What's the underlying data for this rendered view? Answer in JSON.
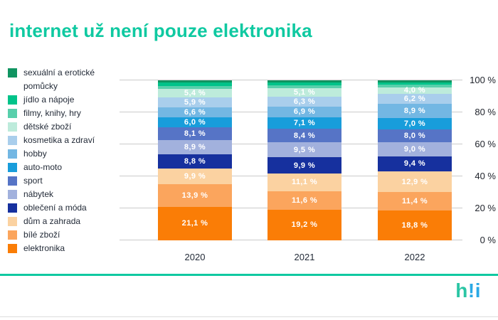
{
  "title": "internet už není pouze elektronika",
  "colors": {
    "accent_teal": "#0FC9A1",
    "logo_green": "#2BC5A4",
    "logo_blue": "#2AA9E5",
    "grid": "#CBCBCB",
    "text_dark": "#232B38",
    "bar_label": "#FFFFFF"
  },
  "logo": {
    "h": "h",
    "bang": "!i"
  },
  "chart_data": {
    "type": "bar",
    "stacked": true,
    "unit": "%",
    "grid": true,
    "legend_position": "left",
    "ylim": [
      0,
      100
    ],
    "y_ticks": [
      "0 %",
      "20 %",
      "40 %",
      "60 %",
      "80 %",
      "100 %"
    ],
    "categories": [
      "2020",
      "2021",
      "2022"
    ],
    "series_note": "series listed bottom-of-stack to top-of-stack; values are percent; empty label = value not printed on chart (estimated from pixel height)",
    "series": [
      {
        "name": "elektronika",
        "color": "#FA7D06",
        "values": [
          21.1,
          19.2,
          18.8
        ],
        "labels": [
          "21,1 %",
          "19,2 %",
          "18,8 %"
        ]
      },
      {
        "name": "bílé zboží",
        "color": "#FBA55D",
        "values": [
          13.9,
          11.6,
          11.4
        ],
        "labels": [
          "13,9 %",
          "11,6 %",
          "11,4 %"
        ]
      },
      {
        "name": "dům a zahrada",
        "color": "#FBD2A1",
        "values": [
          9.9,
          11.1,
          12.9
        ],
        "labels": [
          "9,9 %",
          "11,1 %",
          "12,9 %"
        ]
      },
      {
        "name": "oblečení a móda",
        "color": "#16309E",
        "values": [
          8.8,
          9.9,
          9.4
        ],
        "labels": [
          "8,8 %",
          "9,9 %",
          "9,4 %"
        ]
      },
      {
        "name": "nábytek",
        "color": "#A2B1DD",
        "values": [
          8.9,
          9.5,
          9.0
        ],
        "labels": [
          "8,9 %",
          "9,5 %",
          "9,0 %"
        ]
      },
      {
        "name": "sport",
        "color": "#5674C6",
        "values": [
          8.1,
          8.4,
          8.0
        ],
        "labels": [
          "8,1 %",
          "8,4 %",
          "8,0 %"
        ]
      },
      {
        "name": "auto-moto",
        "color": "#189DDB",
        "values": [
          6.0,
          7.1,
          7.0
        ],
        "labels": [
          "6,0 %",
          "7,1 %",
          "7,0 %"
        ]
      },
      {
        "name": "hobby",
        "color": "#73B7E3",
        "values": [
          6.6,
          6.9,
          8.9
        ],
        "labels": [
          "6,6 %",
          "6,9 %",
          "8,9 %"
        ]
      },
      {
        "name": "kosmetika a zdraví",
        "color": "#A9CEEC",
        "values": [
          5.9,
          6.3,
          6.2
        ],
        "labels": [
          "5,9 %",
          "6,3 %",
          "6,2 %"
        ]
      },
      {
        "name": "dětské zboží",
        "color": "#BDEBDB",
        "values": [
          5.4,
          5.1,
          4.0
        ],
        "labels": [
          "5,4 %",
          "5,1 %",
          "4,0 %"
        ]
      },
      {
        "name": "filmy, knihy, hry",
        "color": "#58CFAB",
        "values": [
          2.1,
          1.9,
          1.7
        ],
        "labels": [
          "",
          "",
          ""
        ]
      },
      {
        "name": "jídlo a nápoje",
        "color": "#00C389",
        "values": [
          1.9,
          1.7,
          1.5
        ],
        "labels": [
          "",
          "",
          ""
        ]
      },
      {
        "name": "sexuální a erotické pomůcky",
        "color": "#109461",
        "values": [
          1.4,
          1.3,
          1.2
        ],
        "labels": [
          "",
          "",
          ""
        ]
      }
    ]
  }
}
